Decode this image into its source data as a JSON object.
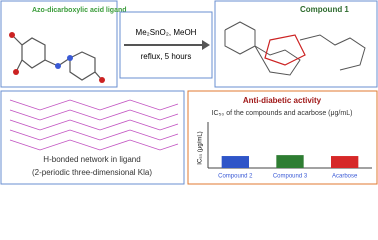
{
  "ligand_label": "Azo-dicarboxylic acid ligand",
  "reaction": {
    "reagents": "Me₂SnO₂, MeOH",
    "conditions": "reflux, 5 hours"
  },
  "product_label": "Compound 1",
  "network": {
    "title": "H-bonded network in ligand",
    "subtitle": "(2-periodic three-dimensional Kla)"
  },
  "activity": {
    "title": "Anti-diabetic activity",
    "subtitle": "IC₅₀ of the compounds and acarbose (μg/mL)",
    "chart": {
      "type": "bar",
      "y_label": "IC₅₀ (μg/mL)",
      "categories": [
        "Compound 2",
        "Compound 3",
        "Acarbose"
      ],
      "values": [
        13,
        14,
        13
      ],
      "colors": [
        "#2f55c8",
        "#2e7d32",
        "#d62828"
      ],
      "ylim": [
        0,
        50
      ]
    }
  }
}
